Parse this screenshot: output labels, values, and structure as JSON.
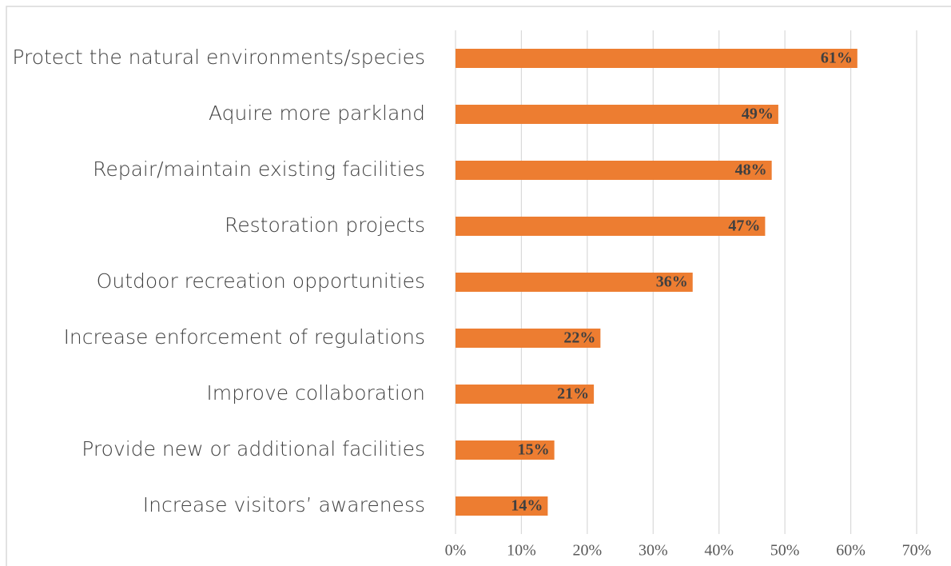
{
  "chart_data": {
    "type": "bar",
    "orientation": "horizontal",
    "categories": [
      "Protect the natural environments/species",
      "Aquire more parkland",
      "Repair/maintain existing facilities",
      "Restoration projects",
      "Outdoor recreation opportunities",
      "Increase enforcement of regulations",
      "Improve collaboration ",
      "Provide new or additional facilities",
      "Increase visitors’ awareness"
    ],
    "values": [
      61,
      49,
      48,
      47,
      36,
      22,
      21,
      15,
      14
    ],
    "value_labels": [
      "61%",
      "49%",
      "48%",
      "47%",
      "36%",
      "22%",
      "21%",
      "15%",
      "14%"
    ],
    "color": "#ed7d31",
    "xlim": [
      0,
      70
    ],
    "xticks": [
      {
        "value": 0,
        "label": "0%"
      },
      {
        "value": 10,
        "label": "10%"
      },
      {
        "value": 20,
        "label": "20%"
      },
      {
        "value": 30,
        "label": "30%"
      },
      {
        "value": 40,
        "label": "40%"
      },
      {
        "value": 50,
        "label": "50%"
      },
      {
        "value": 60,
        "label": "60%"
      },
      {
        "value": 70,
        "label": "70%"
      }
    ],
    "grid": true
  }
}
